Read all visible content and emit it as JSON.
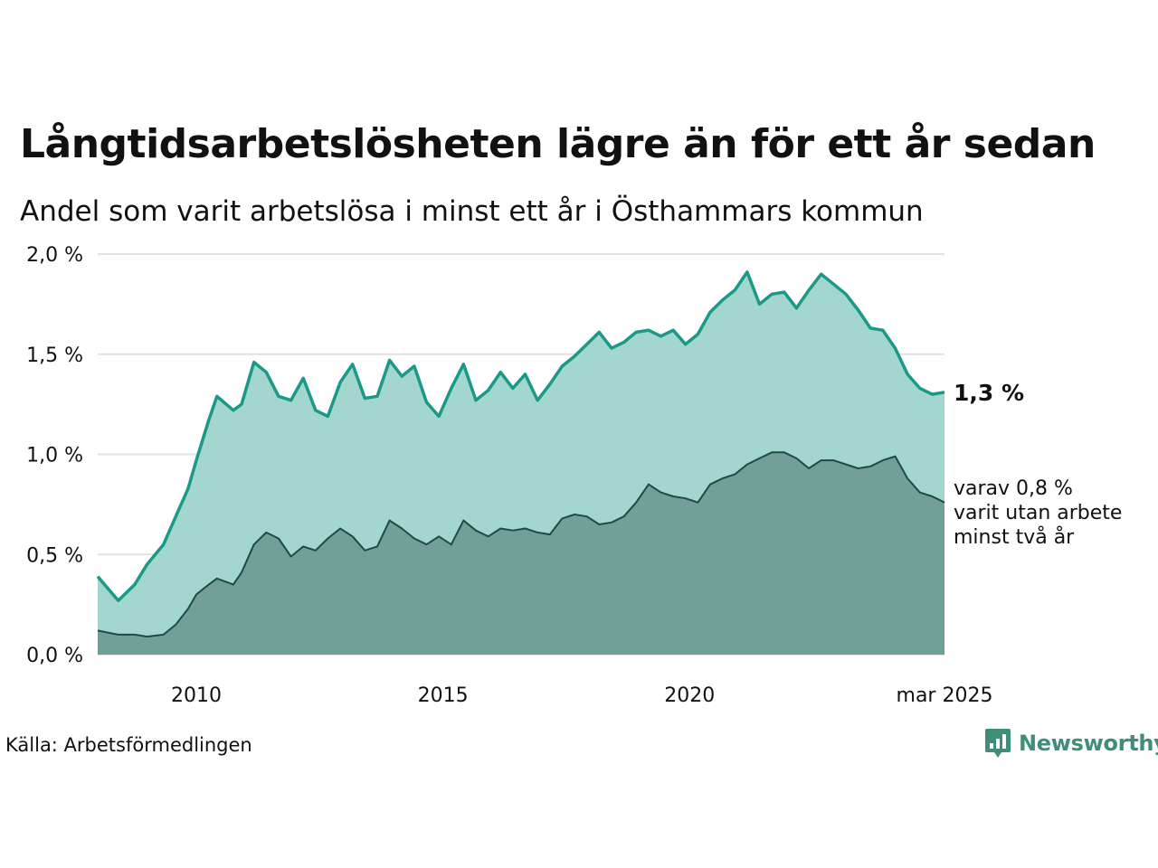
{
  "title": "Långtidsarbetslösheten lägre än för ett år sedan",
  "subtitle": "Andel som varit arbetslösa i minst ett år i Östhammars kommun",
  "source": "Källa: Arbetsförmedlingen",
  "logo_text": "Newsworthy",
  "colors": {
    "main_line": "#1a9a86",
    "main_area": "#a3d6cf",
    "sub_line": "#1f4b44",
    "sub_area": "#729f98",
    "grid": "#e2e2e2",
    "logo": "#3f8f78"
  },
  "chart_data": {
    "type": "area",
    "x_start": "2008-01",
    "x_end": "2025-03",
    "ylim": [
      0,
      2.0
    ],
    "yticks": [
      0,
      0.5,
      1.0,
      1.5,
      2.0
    ],
    "ytick_labels": [
      "0,0 %",
      "0,5 %",
      "1,0 %",
      "1,5 %",
      "2,0 %"
    ],
    "xticks": [
      "2010-01",
      "2015-01",
      "2020-01",
      "2025-03"
    ],
    "xtick_labels": [
      "2010",
      "2015",
      "2020",
      "mar 2025"
    ],
    "grid": true,
    "end_label_main": "1,3 %",
    "end_label_sub": [
      "varav 0,8 %",
      "varit utan arbete",
      "minst två år"
    ],
    "series": [
      {
        "role": "main",
        "points": [
          [
            "2008-01",
            0.39
          ],
          [
            "2008-06",
            0.27
          ],
          [
            "2008-10",
            0.35
          ],
          [
            "2009-01",
            0.45
          ],
          [
            "2009-05",
            0.55
          ],
          [
            "2009-08",
            0.69
          ],
          [
            "2009-11",
            0.83
          ],
          [
            "2010-01",
            0.97
          ],
          [
            "2010-04",
            1.17
          ],
          [
            "2010-06",
            1.29
          ],
          [
            "2010-10",
            1.22
          ],
          [
            "2010-12",
            1.25
          ],
          [
            "2011-03",
            1.46
          ],
          [
            "2011-06",
            1.41
          ],
          [
            "2011-09",
            1.29
          ],
          [
            "2011-12",
            1.27
          ],
          [
            "2012-03",
            1.38
          ],
          [
            "2012-06",
            1.22
          ],
          [
            "2012-09",
            1.19
          ],
          [
            "2012-12",
            1.36
          ],
          [
            "2013-03",
            1.45
          ],
          [
            "2013-06",
            1.28
          ],
          [
            "2013-09",
            1.29
          ],
          [
            "2013-12",
            1.47
          ],
          [
            "2014-03",
            1.39
          ],
          [
            "2014-06",
            1.44
          ],
          [
            "2014-09",
            1.26
          ],
          [
            "2014-12",
            1.19
          ],
          [
            "2015-03",
            1.33
          ],
          [
            "2015-06",
            1.45
          ],
          [
            "2015-09",
            1.27
          ],
          [
            "2015-12",
            1.32
          ],
          [
            "2016-03",
            1.41
          ],
          [
            "2016-06",
            1.33
          ],
          [
            "2016-09",
            1.4
          ],
          [
            "2016-12",
            1.27
          ],
          [
            "2017-03",
            1.35
          ],
          [
            "2017-06",
            1.44
          ],
          [
            "2017-09",
            1.49
          ],
          [
            "2017-12",
            1.55
          ],
          [
            "2018-03",
            1.61
          ],
          [
            "2018-06",
            1.53
          ],
          [
            "2018-09",
            1.56
          ],
          [
            "2018-12",
            1.61
          ],
          [
            "2019-03",
            1.62
          ],
          [
            "2019-06",
            1.59
          ],
          [
            "2019-09",
            1.62
          ],
          [
            "2019-12",
            1.55
          ],
          [
            "2020-03",
            1.6
          ],
          [
            "2020-06",
            1.71
          ],
          [
            "2020-09",
            1.77
          ],
          [
            "2020-12",
            1.82
          ],
          [
            "2021-03",
            1.91
          ],
          [
            "2021-06",
            1.75
          ],
          [
            "2021-09",
            1.8
          ],
          [
            "2021-12",
            1.81
          ],
          [
            "2022-03",
            1.73
          ],
          [
            "2022-06",
            1.82
          ],
          [
            "2022-09",
            1.9
          ],
          [
            "2022-12",
            1.85
          ],
          [
            "2023-03",
            1.8
          ],
          [
            "2023-06",
            1.72
          ],
          [
            "2023-09",
            1.63
          ],
          [
            "2023-12",
            1.62
          ],
          [
            "2024-03",
            1.53
          ],
          [
            "2024-06",
            1.4
          ],
          [
            "2024-09",
            1.33
          ],
          [
            "2024-12",
            1.3
          ],
          [
            "2025-03",
            1.31
          ]
        ]
      },
      {
        "role": "sub",
        "points": [
          [
            "2008-01",
            0.12
          ],
          [
            "2008-06",
            0.1
          ],
          [
            "2008-10",
            0.1
          ],
          [
            "2009-01",
            0.09
          ],
          [
            "2009-05",
            0.1
          ],
          [
            "2009-08",
            0.15
          ],
          [
            "2009-11",
            0.23
          ],
          [
            "2010-01",
            0.3
          ],
          [
            "2010-04",
            0.35
          ],
          [
            "2010-06",
            0.38
          ],
          [
            "2010-10",
            0.35
          ],
          [
            "2010-12",
            0.41
          ],
          [
            "2011-03",
            0.55
          ],
          [
            "2011-06",
            0.61
          ],
          [
            "2011-09",
            0.58
          ],
          [
            "2011-12",
            0.49
          ],
          [
            "2012-03",
            0.54
          ],
          [
            "2012-06",
            0.52
          ],
          [
            "2012-09",
            0.58
          ],
          [
            "2012-12",
            0.63
          ],
          [
            "2013-03",
            0.59
          ],
          [
            "2013-06",
            0.52
          ],
          [
            "2013-09",
            0.54
          ],
          [
            "2013-12",
            0.67
          ],
          [
            "2014-03",
            0.63
          ],
          [
            "2014-06",
            0.58
          ],
          [
            "2014-09",
            0.55
          ],
          [
            "2014-12",
            0.59
          ],
          [
            "2015-03",
            0.55
          ],
          [
            "2015-06",
            0.67
          ],
          [
            "2015-09",
            0.62
          ],
          [
            "2015-12",
            0.59
          ],
          [
            "2016-03",
            0.63
          ],
          [
            "2016-06",
            0.62
          ],
          [
            "2016-09",
            0.63
          ],
          [
            "2016-12",
            0.61
          ],
          [
            "2017-03",
            0.6
          ],
          [
            "2017-06",
            0.68
          ],
          [
            "2017-09",
            0.7
          ],
          [
            "2017-12",
            0.69
          ],
          [
            "2018-03",
            0.65
          ],
          [
            "2018-06",
            0.66
          ],
          [
            "2018-09",
            0.69
          ],
          [
            "2018-12",
            0.76
          ],
          [
            "2019-03",
            0.85
          ],
          [
            "2019-06",
            0.81
          ],
          [
            "2019-09",
            0.79
          ],
          [
            "2019-12",
            0.78
          ],
          [
            "2020-03",
            0.76
          ],
          [
            "2020-06",
            0.85
          ],
          [
            "2020-09",
            0.88
          ],
          [
            "2020-12",
            0.9
          ],
          [
            "2021-03",
            0.95
          ],
          [
            "2021-06",
            0.98
          ],
          [
            "2021-09",
            1.01
          ],
          [
            "2021-12",
            1.01
          ],
          [
            "2022-03",
            0.98
          ],
          [
            "2022-06",
            0.93
          ],
          [
            "2022-09",
            0.97
          ],
          [
            "2022-12",
            0.97
          ],
          [
            "2023-03",
            0.95
          ],
          [
            "2023-06",
            0.93
          ],
          [
            "2023-09",
            0.94
          ],
          [
            "2023-12",
            0.97
          ],
          [
            "2024-03",
            0.99
          ],
          [
            "2024-06",
            0.88
          ],
          [
            "2024-09",
            0.81
          ],
          [
            "2024-12",
            0.79
          ],
          [
            "2025-03",
            0.76
          ]
        ]
      }
    ]
  }
}
